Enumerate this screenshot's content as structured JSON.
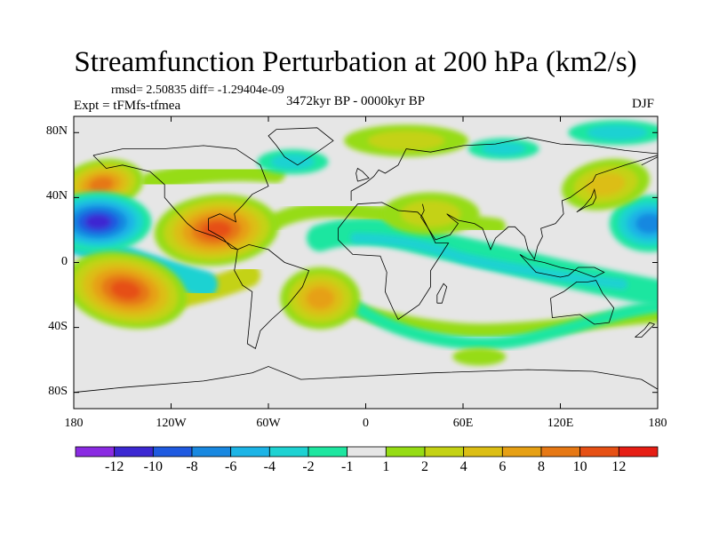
{
  "chart_data": {
    "type": "heatmap",
    "title": "Streamfunction Perturbation at 200 hPa (km2/s)",
    "stats_text": "rmsd= 2.50835 diff= -1.29404e-09",
    "left_label": "Expt = tFMfs-tfmea",
    "center_label": "3472kyr BP - 0000kyr BP",
    "right_label": "DJF",
    "xlim": [
      -180,
      180
    ],
    "ylim": [
      -90,
      90
    ],
    "x_ticks": [
      {
        "value": -180,
        "label": "180"
      },
      {
        "value": -120,
        "label": "120W"
      },
      {
        "value": -60,
        "label": "60W"
      },
      {
        "value": 0,
        "label": "0"
      },
      {
        "value": 60,
        "label": "60E"
      },
      {
        "value": 120,
        "label": "120E"
      },
      {
        "value": 180,
        "label": "180"
      }
    ],
    "y_ticks": [
      {
        "value": 80,
        "label": "80N"
      },
      {
        "value": 40,
        "label": "40N"
      },
      {
        "value": 0,
        "label": "0"
      },
      {
        "value": -40,
        "label": "40S"
      },
      {
        "value": -80,
        "label": "80S"
      }
    ],
    "colorbar": {
      "colors": [
        "#8a2be2",
        "#3c28d2",
        "#1f5ae0",
        "#1888e0",
        "#1cb4e6",
        "#1ed2d2",
        "#1ee6a0",
        "#e6e6e6",
        "#96dc14",
        "#c4d214",
        "#dcbe14",
        "#e6a014",
        "#e67814",
        "#e65014",
        "#e61e14"
      ],
      "labels": [
        {
          "boundary": 1,
          "label": "-12"
        },
        {
          "boundary": 2,
          "label": "-10"
        },
        {
          "boundary": 3,
          "label": "-8"
        },
        {
          "boundary": 4,
          "label": "-6"
        },
        {
          "boundary": 5,
          "label": "-4"
        },
        {
          "boundary": 6,
          "label": "-2"
        },
        {
          "boundary": 7,
          "label": "-1"
        },
        {
          "boundary": 8,
          "label": "1"
        },
        {
          "boundary": 9,
          "label": "2"
        },
        {
          "boundary": 10,
          "label": "4"
        },
        {
          "boundary": 11,
          "label": "6"
        },
        {
          "boundary": 12,
          "label": "8"
        },
        {
          "boundary": 13,
          "label": "10"
        },
        {
          "boundary": 14,
          "label": "12"
        }
      ]
    },
    "features": [
      {
        "name": "negative-center-central-pacific-north",
        "lon": -163,
        "lat": 26,
        "value": -11
      },
      {
        "name": "negative-center-west-pacific-edge",
        "lon": 175,
        "lat": 25,
        "value": -7
      },
      {
        "name": "negative-band-africa-indian",
        "lon": 50,
        "lat": -10,
        "value": -3
      },
      {
        "name": "negative-band-australia",
        "lon": 110,
        "lat": -30,
        "value": -3
      },
      {
        "name": "positive-center-north-pacific",
        "lon": -163,
        "lat": 48,
        "value": 7
      },
      {
        "name": "positive-center-caribbean",
        "lon": -90,
        "lat": 20,
        "value": 9
      },
      {
        "name": "positive-center-south-pacific",
        "lon": -150,
        "lat": -18,
        "value": 10
      },
      {
        "name": "positive-center-south-atlantic",
        "lon": -30,
        "lat": -25,
        "value": 6
      },
      {
        "name": "positive-center-north-africa",
        "lon": 35,
        "lat": 35,
        "value": 3
      },
      {
        "name": "positive-arc-south-indian",
        "lon": 70,
        "lat": -40,
        "value": 2
      },
      {
        "name": "negative-center-north-atlantic",
        "lon": -45,
        "lat": 55,
        "value": -3
      },
      {
        "name": "positive-north-pacific-japan",
        "lon": 140,
        "lat": 50,
        "value": 5
      }
    ]
  }
}
